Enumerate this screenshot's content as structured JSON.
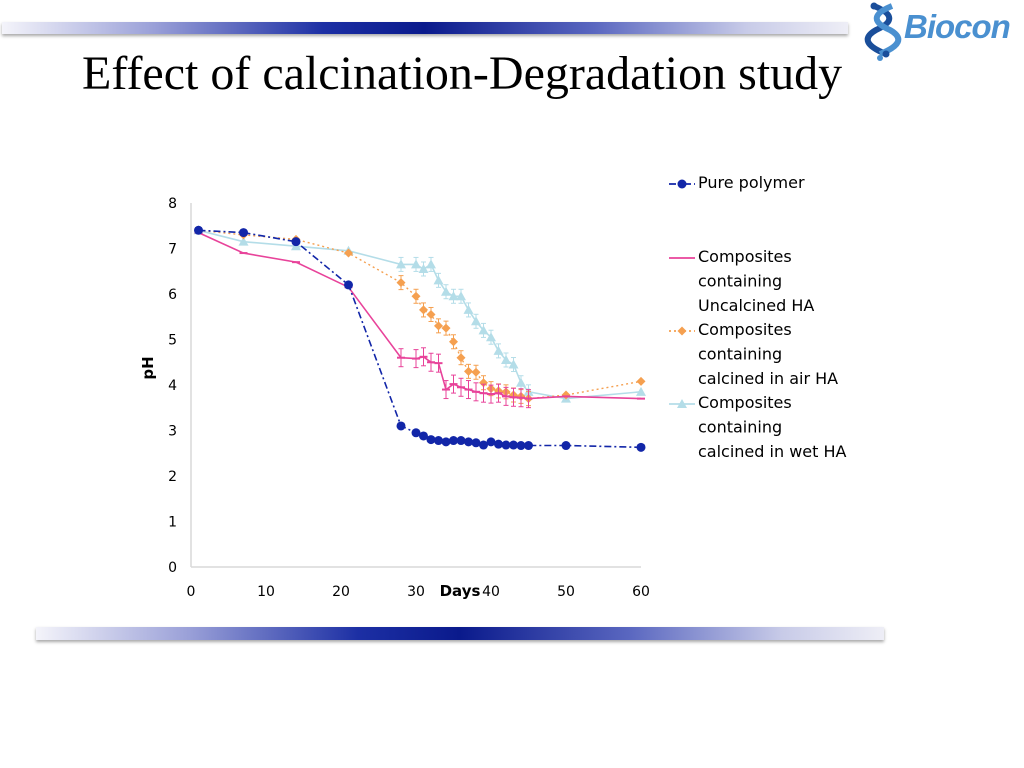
{
  "slide": {
    "title": "Effect of calcination-Degradation study",
    "logo_text": "Biocon"
  },
  "colors": {
    "pure": "#1226a8",
    "uncalcined": "#e8439a",
    "air": "#f5a050",
    "wet": "#b4dde8"
  },
  "chart_data": {
    "type": "line",
    "title": "",
    "xlabel": "Days",
    "ylabel": "pH",
    "xlim": [
      0,
      60
    ],
    "ylim": [
      0,
      8
    ],
    "xticks": [
      0,
      10,
      20,
      30,
      40,
      50,
      60
    ],
    "yticks": [
      0,
      1,
      2,
      3,
      4,
      5,
      6,
      7,
      8
    ],
    "grid": false,
    "legend": "right",
    "series": [
      {
        "name": "Pure polymer",
        "key": "pure",
        "marker": "circle",
        "line": "dashdot",
        "x": [
          1,
          7,
          14,
          21,
          28,
          30,
          31,
          32,
          33,
          34,
          35,
          36,
          37,
          38,
          39,
          40,
          41,
          42,
          43,
          44,
          45,
          50,
          60
        ],
        "y": [
          7.4,
          7.35,
          7.15,
          6.2,
          3.1,
          2.95,
          2.88,
          2.8,
          2.78,
          2.75,
          2.78,
          2.78,
          2.75,
          2.73,
          2.68,
          2.75,
          2.7,
          2.68,
          2.68,
          2.67,
          2.67,
          2.67,
          2.63
        ]
      },
      {
        "name": "Composites containing Uncalcined HA",
        "key": "uncalcined",
        "marker": "dash",
        "line": "solid",
        "x": [
          1,
          7,
          14,
          21,
          28,
          30,
          31,
          32,
          33,
          34,
          35,
          36,
          37,
          38,
          39,
          40,
          41,
          42,
          43,
          44,
          45,
          50,
          60
        ],
        "y": [
          7.35,
          6.9,
          6.7,
          6.15,
          4.6,
          4.58,
          4.62,
          4.5,
          4.48,
          3.9,
          4.02,
          3.95,
          3.9,
          3.85,
          3.82,
          3.8,
          3.82,
          3.75,
          3.73,
          3.72,
          3.7,
          3.75,
          3.7
        ]
      },
      {
        "name": "Composites containing calcined in air HA",
        "key": "air",
        "marker": "diamond",
        "line": "dotted",
        "x": [
          1,
          7,
          14,
          21,
          28,
          30,
          31,
          32,
          33,
          34,
          35,
          36,
          37,
          38,
          39,
          40,
          41,
          42,
          43,
          44,
          45,
          50,
          60
        ],
        "y": [
          7.4,
          7.3,
          7.2,
          6.9,
          6.25,
          5.95,
          5.65,
          5.55,
          5.3,
          5.25,
          4.95,
          4.6,
          4.3,
          4.28,
          4.05,
          3.92,
          3.87,
          3.85,
          3.78,
          3.75,
          3.7,
          3.78,
          4.08
        ]
      },
      {
        "name": "Composites containing calcined in wet HA",
        "key": "wet",
        "marker": "triangle",
        "line": "solid",
        "x": [
          1,
          7,
          14,
          21,
          28,
          30,
          31,
          32,
          33,
          34,
          35,
          36,
          37,
          38,
          39,
          40,
          41,
          42,
          43,
          44,
          45,
          50,
          60
        ],
        "y": [
          7.4,
          7.15,
          7.05,
          6.95,
          6.65,
          6.65,
          6.55,
          6.65,
          6.3,
          6.05,
          5.95,
          5.95,
          5.65,
          5.4,
          5.2,
          5.05,
          4.75,
          4.55,
          4.45,
          4.05,
          3.85,
          3.7,
          3.85
        ]
      }
    ],
    "legend_entries": [
      {
        "key": "pure",
        "lines": [
          "Pure polymer"
        ]
      },
      {
        "key": "uncalcined",
        "lines": [
          "Composites",
          "containing",
          "Uncalcined HA"
        ]
      },
      {
        "key": "air",
        "lines": [
          "Composites",
          "containing",
          "calcined in air HA"
        ]
      },
      {
        "key": "wet",
        "lines": [
          "Composites",
          "containing",
          "calcined in wet HA"
        ]
      }
    ]
  }
}
